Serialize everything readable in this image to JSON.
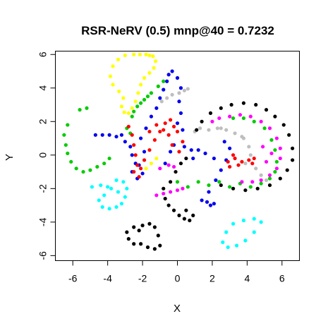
{
  "chart_data": {
    "type": "scatter",
    "title": "RSR-NeRV (0.5) mnp@40 = 0.7232",
    "xlabel": "X",
    "ylabel": "Y",
    "xlim": [
      -7.0,
      7.0
    ],
    "ylim": [
      -6.3,
      6.2
    ],
    "xticks": [
      -6,
      -4,
      -2,
      0,
      2,
      4,
      6
    ],
    "yticks": [
      -6,
      -4,
      -2,
      0,
      2,
      4,
      6
    ],
    "xtick_labels": [
      "-6",
      "-4",
      "-2",
      "0",
      "2",
      "4",
      "6"
    ],
    "ytick_labels": [
      "-6",
      "-4",
      "-2",
      "0",
      "2",
      "4",
      "6"
    ],
    "grid": false,
    "legend": "none",
    "marker_radius_hint": "small filled circles",
    "series": [
      {
        "color": "#FFFF00",
        "points": [
          [
            -1.8,
            6.0
          ],
          [
            -1.6,
            5.95
          ],
          [
            -1.4,
            5.9
          ],
          [
            -1.25,
            5.6
          ],
          [
            -1.35,
            5.2
          ],
          [
            -1.6,
            4.9
          ],
          [
            -1.9,
            4.6
          ],
          [
            -2.1,
            4.2
          ],
          [
            -2.25,
            3.7
          ],
          [
            -2.4,
            3.2
          ],
          [
            -2.6,
            2.8
          ],
          [
            -2.8,
            2.5
          ],
          [
            -3.05,
            2.55
          ],
          [
            -3.2,
            2.9
          ],
          [
            -3.1,
            3.4
          ],
          [
            -3.35,
            3.8
          ],
          [
            -3.7,
            4.2
          ],
          [
            -3.85,
            4.7
          ],
          [
            -3.7,
            5.3
          ],
          [
            -3.4,
            5.7
          ],
          [
            -3.0,
            5.95
          ],
          [
            -2.5,
            6.0
          ],
          [
            -2.15,
            6.0
          ],
          [
            -1.2,
            -0.2
          ],
          [
            -1.5,
            -0.5
          ],
          [
            -1.8,
            -0.8
          ]
        ]
      },
      {
        "color": "#00CC00",
        "points": [
          [
            -6.3,
            1.8
          ],
          [
            -6.5,
            1.2
          ],
          [
            -6.4,
            0.6
          ],
          [
            -6.3,
            0.1
          ],
          [
            -6.1,
            -0.4
          ],
          [
            -5.8,
            -0.8
          ],
          [
            -5.4,
            -1.0
          ],
          [
            -5.0,
            -0.9
          ],
          [
            -4.6,
            -0.7
          ],
          [
            -4.2,
            -0.5
          ],
          [
            -3.9,
            -0.2
          ],
          [
            -5.6,
            2.7
          ],
          [
            -5.2,
            2.8
          ],
          [
            -2.7,
            1.3
          ],
          [
            -2.9,
            1.6
          ],
          [
            -2.6,
            2.3
          ],
          [
            -2.3,
            2.9
          ],
          [
            -1.9,
            3.3
          ],
          [
            -1.5,
            3.7
          ],
          [
            -1.1,
            4.1
          ],
          [
            -0.8,
            4.4
          ],
          [
            -1.7,
            3.5
          ],
          [
            -2.1,
            3.1
          ],
          [
            -2.5,
            2.6
          ],
          [
            0.0,
            -1.6
          ],
          [
            0.6,
            -1.9
          ],
          [
            1.2,
            -1.6
          ],
          [
            1.8,
            -1.8
          ],
          [
            2.4,
            -1.6
          ],
          [
            3.0,
            -1.9
          ],
          [
            3.6,
            -1.7
          ],
          [
            4.2,
            -1.9
          ],
          [
            4.8,
            -1.7
          ],
          [
            5.3,
            -1.4
          ],
          [
            5.6,
            -1.0
          ],
          [
            5.7,
            -0.4
          ],
          [
            5.6,
            0.3
          ],
          [
            5.4,
            0.9
          ],
          [
            5.0,
            1.6
          ],
          [
            4.4,
            2.0
          ],
          [
            3.8,
            2.2
          ],
          [
            3.2,
            2.2
          ]
        ]
      },
      {
        "color": "#0000EE",
        "points": [
          [
            -4.7,
            1.2
          ],
          [
            -4.3,
            1.2
          ],
          [
            -3.9,
            1.2
          ],
          [
            -3.5,
            1.1
          ],
          [
            -3.2,
            1.2
          ],
          [
            -3.0,
            0.8
          ],
          [
            -2.7,
            0.5
          ],
          [
            -2.6,
            0.0
          ],
          [
            -2.4,
            -0.5
          ],
          [
            -2.6,
            -1.0
          ],
          [
            -2.3,
            -1.4
          ],
          [
            -2.0,
            -1.1
          ],
          [
            -2.2,
            -0.6
          ],
          [
            -1.9,
            0.2
          ],
          [
            -2.1,
            1.0
          ],
          [
            -1.8,
            1.6
          ],
          [
            -1.5,
            2.3
          ],
          [
            -1.2,
            2.8
          ],
          [
            -1.0,
            3.4
          ],
          [
            -0.8,
            3.9
          ],
          [
            -0.6,
            4.4
          ],
          [
            -0.5,
            4.8
          ],
          [
            -0.3,
            5.0
          ],
          [
            0.0,
            4.6
          ],
          [
            0.2,
            4.0
          ],
          [
            0.1,
            3.2
          ],
          [
            0.2,
            2.5
          ],
          [
            0.0,
            1.9
          ],
          [
            0.3,
            1.5
          ],
          [
            0.4,
            0.5
          ],
          [
            0.8,
            0.3
          ],
          [
            1.2,
            0.3
          ],
          [
            1.6,
            0.1
          ],
          [
            2.1,
            -0.2
          ],
          [
            2.7,
            0.8
          ],
          [
            3.0,
            0.4
          ],
          [
            2.8,
            -0.3
          ],
          [
            2.5,
            -0.9
          ],
          [
            2.2,
            -1.5
          ],
          [
            1.8,
            -2.2
          ],
          [
            1.7,
            -2.8
          ],
          [
            1.9,
            -3.0
          ],
          [
            2.1,
            -2.9
          ],
          [
            -0.4,
            0.2
          ],
          [
            -0.7,
            -0.5
          ],
          [
            -0.2,
            0.6
          ],
          [
            1.4,
            -2.7
          ],
          [
            0.9,
            -0.2
          ]
        ]
      },
      {
        "color": "#BEBEBE",
        "points": [
          [
            -0.9,
            3.2
          ],
          [
            -0.6,
            3.4
          ],
          [
            -0.3,
            3.6
          ],
          [
            0.1,
            3.7
          ],
          [
            0.4,
            3.85
          ],
          [
            0.6,
            3.95
          ],
          [
            1.0,
            1.4
          ],
          [
            1.3,
            1.6
          ],
          [
            1.8,
            1.5
          ],
          [
            2.3,
            1.6
          ],
          [
            2.8,
            1.5
          ],
          [
            3.3,
            1.3
          ],
          [
            3.8,
            1.0
          ],
          [
            4.1,
            0.5
          ],
          [
            4.2,
            0.0
          ],
          [
            3.9,
            -0.5
          ],
          [
            4.5,
            -0.8
          ],
          [
            4.8,
            -1.2
          ],
          [
            5.1,
            -1.5
          ],
          [
            3.7,
            1.1
          ],
          [
            2.5,
            1.6
          ]
        ]
      },
      {
        "color": "#FF0000",
        "points": [
          [
            -2.8,
            1.7
          ],
          [
            -2.6,
            1.2
          ],
          [
            -2.5,
            0.6
          ],
          [
            -2.4,
            0.0
          ],
          [
            -2.3,
            -0.6
          ],
          [
            -2.5,
            -1.0
          ],
          [
            -2.2,
            -1.3
          ],
          [
            -2.1,
            -0.8
          ],
          [
            -1.9,
            -0.3
          ],
          [
            -1.6,
            0.3
          ],
          [
            -1.3,
            0.9
          ],
          [
            -1.0,
            1.4
          ],
          [
            -0.7,
            1.9
          ],
          [
            -0.4,
            2.1
          ],
          [
            -0.2,
            1.7
          ],
          [
            -0.5,
            1.2
          ],
          [
            -0.3,
            0.6
          ],
          [
            0.1,
            0.2
          ],
          [
            0.3,
            0.8
          ],
          [
            0.0,
            1.4
          ],
          [
            -0.8,
            1.5
          ],
          [
            -1.2,
            1.8
          ],
          [
            -1.6,
            1.4
          ],
          [
            2.9,
            -0.4
          ],
          [
            3.3,
            -0.2
          ],
          [
            3.7,
            -0.4
          ],
          [
            4.1,
            -0.3
          ],
          [
            4.4,
            -0.2
          ],
          [
            3.5,
            -0.6
          ],
          [
            3.0,
            -0.7
          ],
          [
            4.3,
            -0.5
          ],
          [
            3.2,
            0.0
          ]
        ]
      },
      {
        "color": "#00FFFF",
        "points": [
          [
            -3.5,
            -1.5
          ],
          [
            -3.1,
            -1.6
          ],
          [
            -2.9,
            -2.0
          ],
          [
            -3.0,
            -2.5
          ],
          [
            -3.2,
            -2.9
          ],
          [
            -3.5,
            -3.1
          ],
          [
            -3.9,
            -3.2
          ],
          [
            -4.3,
            -3.1
          ],
          [
            -4.5,
            -2.7
          ],
          [
            -4.2,
            -2.4
          ],
          [
            -3.8,
            -2.0
          ],
          [
            -4.4,
            -1.8
          ],
          [
            -4.9,
            -1.9
          ],
          [
            -4.0,
            -1.9
          ],
          [
            -3.4,
            -2.2
          ],
          [
            4.8,
            -4.0
          ],
          [
            4.4,
            -4.6
          ],
          [
            3.9,
            -5.1
          ],
          [
            3.4,
            -5.4
          ],
          [
            2.9,
            -5.5
          ],
          [
            2.6,
            -5.2
          ],
          [
            2.8,
            -4.6
          ],
          [
            3.2,
            -4.1
          ],
          [
            3.8,
            -3.9
          ],
          [
            4.4,
            -3.8
          ]
        ]
      },
      {
        "color": "#000000",
        "points": [
          [
            -1.6,
            -4.1
          ],
          [
            -1.3,
            -4.3
          ],
          [
            -1.1,
            -4.8
          ],
          [
            -1.0,
            -5.4
          ],
          [
            -1.3,
            -5.6
          ],
          [
            -1.7,
            -5.5
          ],
          [
            -2.1,
            -5.3
          ],
          [
            -2.5,
            -5.3
          ],
          [
            -2.8,
            -5.0
          ],
          [
            -2.9,
            -4.6
          ],
          [
            -2.5,
            -4.3
          ],
          [
            -2.2,
            -4.5
          ],
          [
            -2.0,
            -4.2
          ],
          [
            -0.7,
            -2.6
          ],
          [
            -0.5,
            -3.0
          ],
          [
            -0.2,
            -3.3
          ],
          [
            0.1,
            -3.6
          ],
          [
            0.4,
            -3.8
          ],
          [
            0.7,
            -3.9
          ],
          [
            0.9,
            -3.6
          ],
          [
            0.5,
            -3.3
          ],
          [
            -0.8,
            -2.0
          ],
          [
            -0.4,
            -1.6
          ],
          [
            -0.1,
            -1.0
          ],
          [
            0.2,
            -0.5
          ],
          [
            0.5,
            -0.2
          ],
          [
            1.1,
            1.5
          ],
          [
            1.4,
            2.0
          ],
          [
            1.9,
            2.5
          ],
          [
            2.5,
            2.8
          ],
          [
            3.1,
            3.0
          ],
          [
            3.8,
            3.1
          ],
          [
            4.5,
            3.0
          ],
          [
            5.1,
            2.7
          ],
          [
            5.6,
            2.3
          ],
          [
            6.1,
            1.8
          ],
          [
            6.4,
            1.2
          ],
          [
            6.6,
            0.4
          ],
          [
            6.6,
            -0.3
          ],
          [
            6.3,
            -0.9
          ],
          [
            5.9,
            -1.4
          ],
          [
            5.3,
            -1.8
          ],
          [
            4.6,
            -2.0
          ],
          [
            3.9,
            -2.1
          ],
          [
            3.2,
            -2.0
          ],
          [
            2.5,
            -1.8
          ]
        ]
      },
      {
        "color": "#FF00FF",
        "points": [
          [
            -1.2,
            -2.4
          ],
          [
            -0.8,
            -2.3
          ],
          [
            -0.4,
            -2.2
          ],
          [
            0.0,
            -2.1
          ],
          [
            0.3,
            -2.0
          ],
          [
            -0.5,
            -0.6
          ],
          [
            -0.2,
            -0.7
          ],
          [
            -1.0,
            -0.8
          ],
          [
            2.0,
            2.0
          ],
          [
            2.4,
            2.2
          ],
          [
            3.0,
            2.3
          ],
          [
            3.6,
            2.4
          ],
          [
            4.2,
            2.3
          ],
          [
            4.8,
            2.0
          ],
          [
            5.3,
            1.6
          ],
          [
            5.7,
            1.0
          ],
          [
            5.9,
            0.4
          ],
          [
            5.9,
            -0.2
          ],
          [
            5.7,
            -0.8
          ],
          [
            5.3,
            -1.2
          ],
          [
            4.8,
            -1.5
          ],
          [
            4.3,
            -1.6
          ],
          [
            3.7,
            -1.6
          ],
          [
            5.1,
            -0.4
          ],
          [
            5.4,
            0.1
          ],
          [
            4.9,
            0.5
          ]
        ]
      }
    ]
  }
}
